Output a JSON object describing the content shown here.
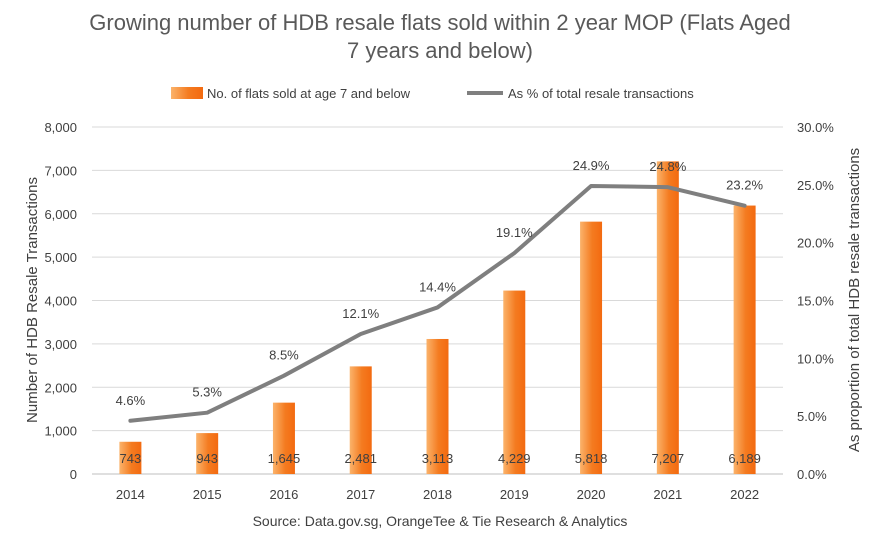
{
  "chart_data": {
    "type": "bar",
    "title_lines": [
      "Growing number of HDB resale flats sold within 2 year MOP (Flats Aged",
      "7 years and below)"
    ],
    "categories": [
      "2014",
      "2015",
      "2016",
      "2017",
      "2018",
      "2019",
      "2020",
      "2021",
      "2022"
    ],
    "series": [
      {
        "name": "No. of flats sold at age 7 and below",
        "type": "bar",
        "axis": "left",
        "values": [
          743,
          943,
          1645,
          2481,
          3113,
          4229,
          5818,
          7207,
          6189
        ],
        "labels": [
          "743",
          "943",
          "1,645",
          "2,481",
          "3,113",
          "4,229",
          "5,818",
          "7,207",
          "6,189"
        ],
        "color": "#F47B20"
      },
      {
        "name": "As % of total resale transactions",
        "type": "line",
        "axis": "right",
        "values": [
          4.6,
          5.3,
          8.5,
          12.1,
          14.4,
          19.1,
          24.9,
          24.8,
          23.2
        ],
        "labels": [
          "4.6%",
          "5.3%",
          "8.5%",
          "12.1%",
          "14.4%",
          "19.1%",
          "24.9%",
          "24.8%",
          "23.2%"
        ],
        "color": "#7F7F7F"
      }
    ],
    "ylabel": "Number of HDB Resale Transactions",
    "y2label": "As proportion of total HDB resale transactions",
    "ylim": [
      0,
      8000
    ],
    "y2lim": [
      0,
      30
    ],
    "yticks": [
      "0",
      "1,000",
      "2,000",
      "3,000",
      "4,000",
      "5,000",
      "6,000",
      "7,000",
      "8,000"
    ],
    "y2ticks": [
      "0.0%",
      "5.0%",
      "10.0%",
      "15.0%",
      "20.0%",
      "25.0%",
      "30.0%"
    ],
    "grid": true,
    "legend_position": "top",
    "source": "Source: Data.gov.sg, OrangeTee & Tie Research & Analytics"
  }
}
